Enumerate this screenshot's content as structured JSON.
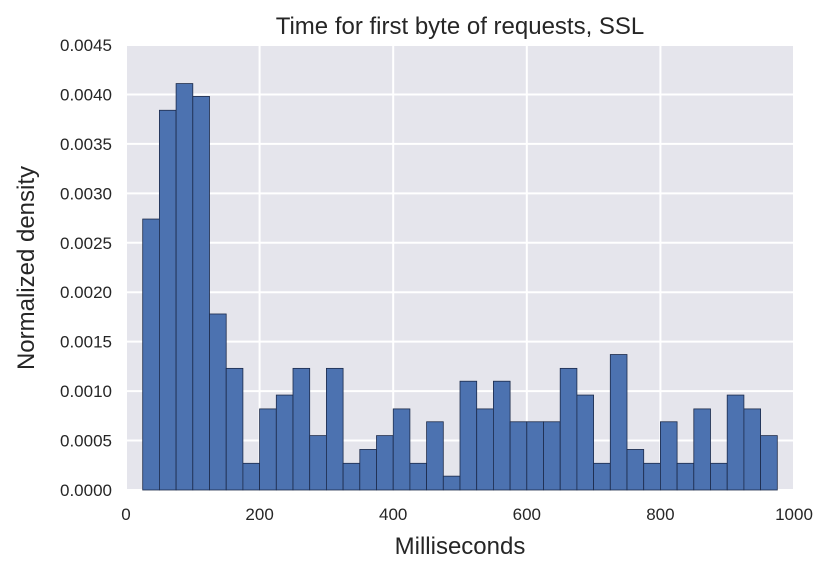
{
  "chart_data": {
    "type": "bar",
    "title": "Time for first byte of requests, SSL",
    "xlabel": "Milliseconds",
    "ylabel": "Normalized density",
    "xlim": [
      0,
      1000
    ],
    "ylim": [
      0,
      0.0045
    ],
    "xticks": [
      0,
      200,
      400,
      600,
      800,
      1000
    ],
    "yticks": [
      0.0,
      0.0005,
      0.001,
      0.0015,
      0.002,
      0.0025,
      0.003,
      0.0035,
      0.004,
      0.0045
    ],
    "xtick_labels": [
      "0",
      "200",
      "400",
      "600",
      "800",
      "1000"
    ],
    "ytick_labels": [
      "0.0000",
      "0.0005",
      "0.0010",
      "0.0015",
      "0.0020",
      "0.0025",
      "0.0030",
      "0.0035",
      "0.0040",
      "0.0045"
    ],
    "grid": true,
    "bin_edges": [
      0,
      25,
      50,
      75,
      100,
      125,
      150,
      175,
      200,
      225,
      250,
      275,
      300,
      325,
      350,
      375,
      400,
      425,
      450,
      475,
      500,
      525,
      550,
      575,
      600,
      625,
      650,
      675,
      700,
      725,
      750,
      775,
      800,
      825,
      850,
      875,
      900,
      925,
      950,
      975
    ],
    "values": [
      0.0,
      0.00274,
      0.00384,
      0.00411,
      0.00398,
      0.00178,
      0.00123,
      0.00027,
      0.00082,
      0.00096,
      0.00123,
      0.00055,
      0.00123,
      0.00027,
      0.00041,
      0.00055,
      0.00082,
      0.00027,
      0.00069,
      0.00014,
      0.0011,
      0.00082,
      0.0011,
      0.00069,
      0.00069,
      0.00069,
      0.00123,
      0.00096,
      0.00027,
      0.00137,
      0.00041,
      0.00027,
      0.00069,
      0.00027,
      0.00082,
      0.00027,
      0.00096,
      0.00082,
      0.00055
    ],
    "colors": {
      "bar_fill": "#4c72b0",
      "bar_edge": "#1c2a4a",
      "plot_bg": "#e5e5ec",
      "grid": "#ffffff"
    }
  }
}
